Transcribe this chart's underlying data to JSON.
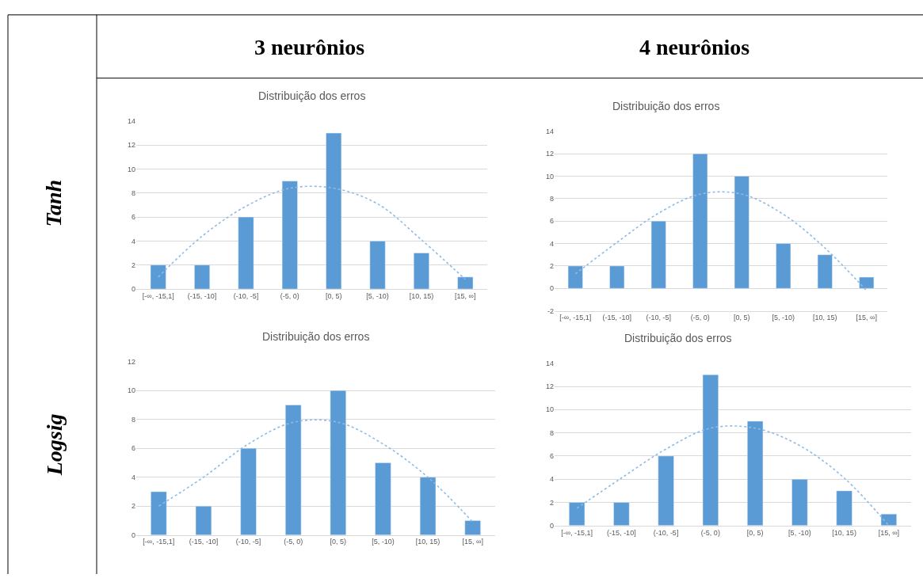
{
  "chart_data": [
    {
      "type": "bar",
      "title": "Distribuição dos erros",
      "annotations": [
        "3 neurônios",
        "Tanh"
      ],
      "categories": [
        "[-∞, -15,1]",
        "(-15, -10]",
        "(-10, -5]",
        "(-5, 0)",
        "[0, 5)",
        "[5, -10)",
        "[10, 15)",
        "[15, ∞]"
      ],
      "series": [
        {
          "color": "#5b9bd5",
          "values": [
            2,
            2,
            6,
            9,
            13,
            4,
            3,
            1
          ]
        },
        {
          "type": "line",
          "line_style": "dotted",
          "color": "#8dbbe6",
          "values": [
            1.0,
            4.4,
            6.9,
            8.4,
            8.4,
            7.1,
            4.1,
            0.8
          ]
        }
      ],
      "ylim": [
        0,
        14
      ],
      "yticks": [
        0,
        2,
        4,
        6,
        8,
        10,
        12,
        14
      ],
      "grid": "y"
    },
    {
      "type": "bar",
      "title": "Distribuição dos erros",
      "annotations": [
        "4 neurônios"
      ],
      "categories": [
        "[-∞, -15,1]",
        "(-15, -10]",
        "(-10, -5]",
        "(-5, 0)",
        "[0, 5)",
        "[5, -10)",
        "[10, 15)",
        "[15, ∞]"
      ],
      "series": [
        {
          "color": "#5b9bd5",
          "values": [
            2,
            2,
            6,
            12,
            10,
            4,
            3,
            1
          ]
        },
        {
          "type": "line",
          "line_style": "dotted",
          "color": "#8dbbe6",
          "values": [
            1.3,
            4.1,
            6.7,
            8.4,
            8.4,
            6.6,
            3.6,
            -0.2
          ]
        }
      ],
      "ylim": [
        -2,
        14
      ],
      "yticks": [
        -2,
        0,
        2,
        4,
        6,
        8,
        10,
        12,
        14
      ],
      "grid": "y"
    },
    {
      "type": "bar",
      "title": "Distribuição dos erros",
      "annotations": [
        "Logsig"
      ],
      "categories": [
        "[-∞, -15,1]",
        "(-15, -10]",
        "(-10, -5]",
        "(-5, 0)",
        "[0, 5)",
        "[5, -10)",
        "[10, 15)",
        "[15, ∞]"
      ],
      "series": [
        {
          "color": "#5b9bd5",
          "values": [
            3,
            2,
            6,
            9,
            10,
            5,
            4,
            1
          ]
        },
        {
          "type": "line",
          "line_style": "dotted",
          "color": "#8dbbe6",
          "values": [
            2.0,
            4.0,
            6.3,
            7.8,
            7.8,
            6.3,
            4.0,
            0.9
          ]
        }
      ],
      "ylim": [
        0,
        12
      ],
      "yticks": [
        0,
        2,
        4,
        6,
        8,
        10,
        12
      ],
      "grid": "y"
    },
    {
      "type": "bar",
      "title": "Distribuição dos erros",
      "categories": [
        "[-∞, -15,1]",
        "(-15, -10]",
        "(-10, -5]",
        "(-5, 0)",
        "[0, 5)",
        "[5, -10)",
        "[10, 15)",
        "[15, ∞]"
      ],
      "series": [
        {
          "color": "#5b9bd5",
          "values": [
            2,
            2,
            6,
            13,
            9,
            4,
            3,
            1
          ]
        },
        {
          "type": "line",
          "line_style": "dotted",
          "color": "#8dbbe6",
          "values": [
            1.5,
            4.1,
            6.6,
            8.4,
            8.4,
            6.9,
            4.1,
            0
          ]
        }
      ],
      "ylim": [
        0,
        14
      ],
      "yticks": [
        0,
        2,
        4,
        6,
        8,
        10,
        12,
        14
      ],
      "grid": "y"
    }
  ]
}
